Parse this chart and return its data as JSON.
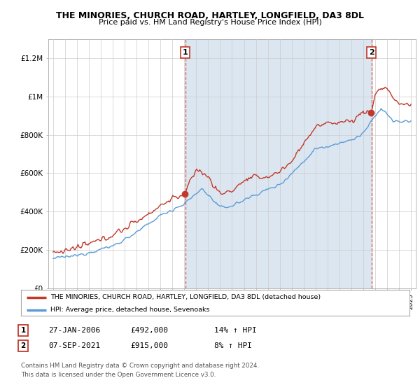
{
  "title": "THE MINORIES, CHURCH ROAD, HARTLEY, LONGFIELD, DA3 8DL",
  "subtitle": "Price paid vs. HM Land Registry's House Price Index (HPI)",
  "ylim": [
    0,
    1300000
  ],
  "yticks": [
    0,
    200000,
    400000,
    600000,
    800000,
    1000000,
    1200000
  ],
  "ytick_labels": [
    "£0",
    "£200K",
    "£400K",
    "£600K",
    "£800K",
    "£1M",
    "£1.2M"
  ],
  "hpi_color": "#5b9bd5",
  "hpi_fill_color": "#dce6f1",
  "price_color": "#c0392b",
  "sale1_year": 2006.07,
  "sale1_price": 492000,
  "sale2_year": 2021.68,
  "sale2_price": 915000,
  "legend_line1": "THE MINORIES, CHURCH ROAD, HARTLEY, LONGFIELD, DA3 8DL (detached house)",
  "legend_line2": "HPI: Average price, detached house, Sevenoaks",
  "table_row1": [
    "1",
    "27-JAN-2006",
    "£492,000",
    "14% ↑ HPI"
  ],
  "table_row2": [
    "2",
    "07-SEP-2021",
    "£915,000",
    "8% ↑ HPI"
  ],
  "footer": "Contains HM Land Registry data © Crown copyright and database right 2024.\nThis data is licensed under the Open Government Licence v3.0.",
  "background_color": "#ffffff",
  "grid_color": "#cccccc"
}
